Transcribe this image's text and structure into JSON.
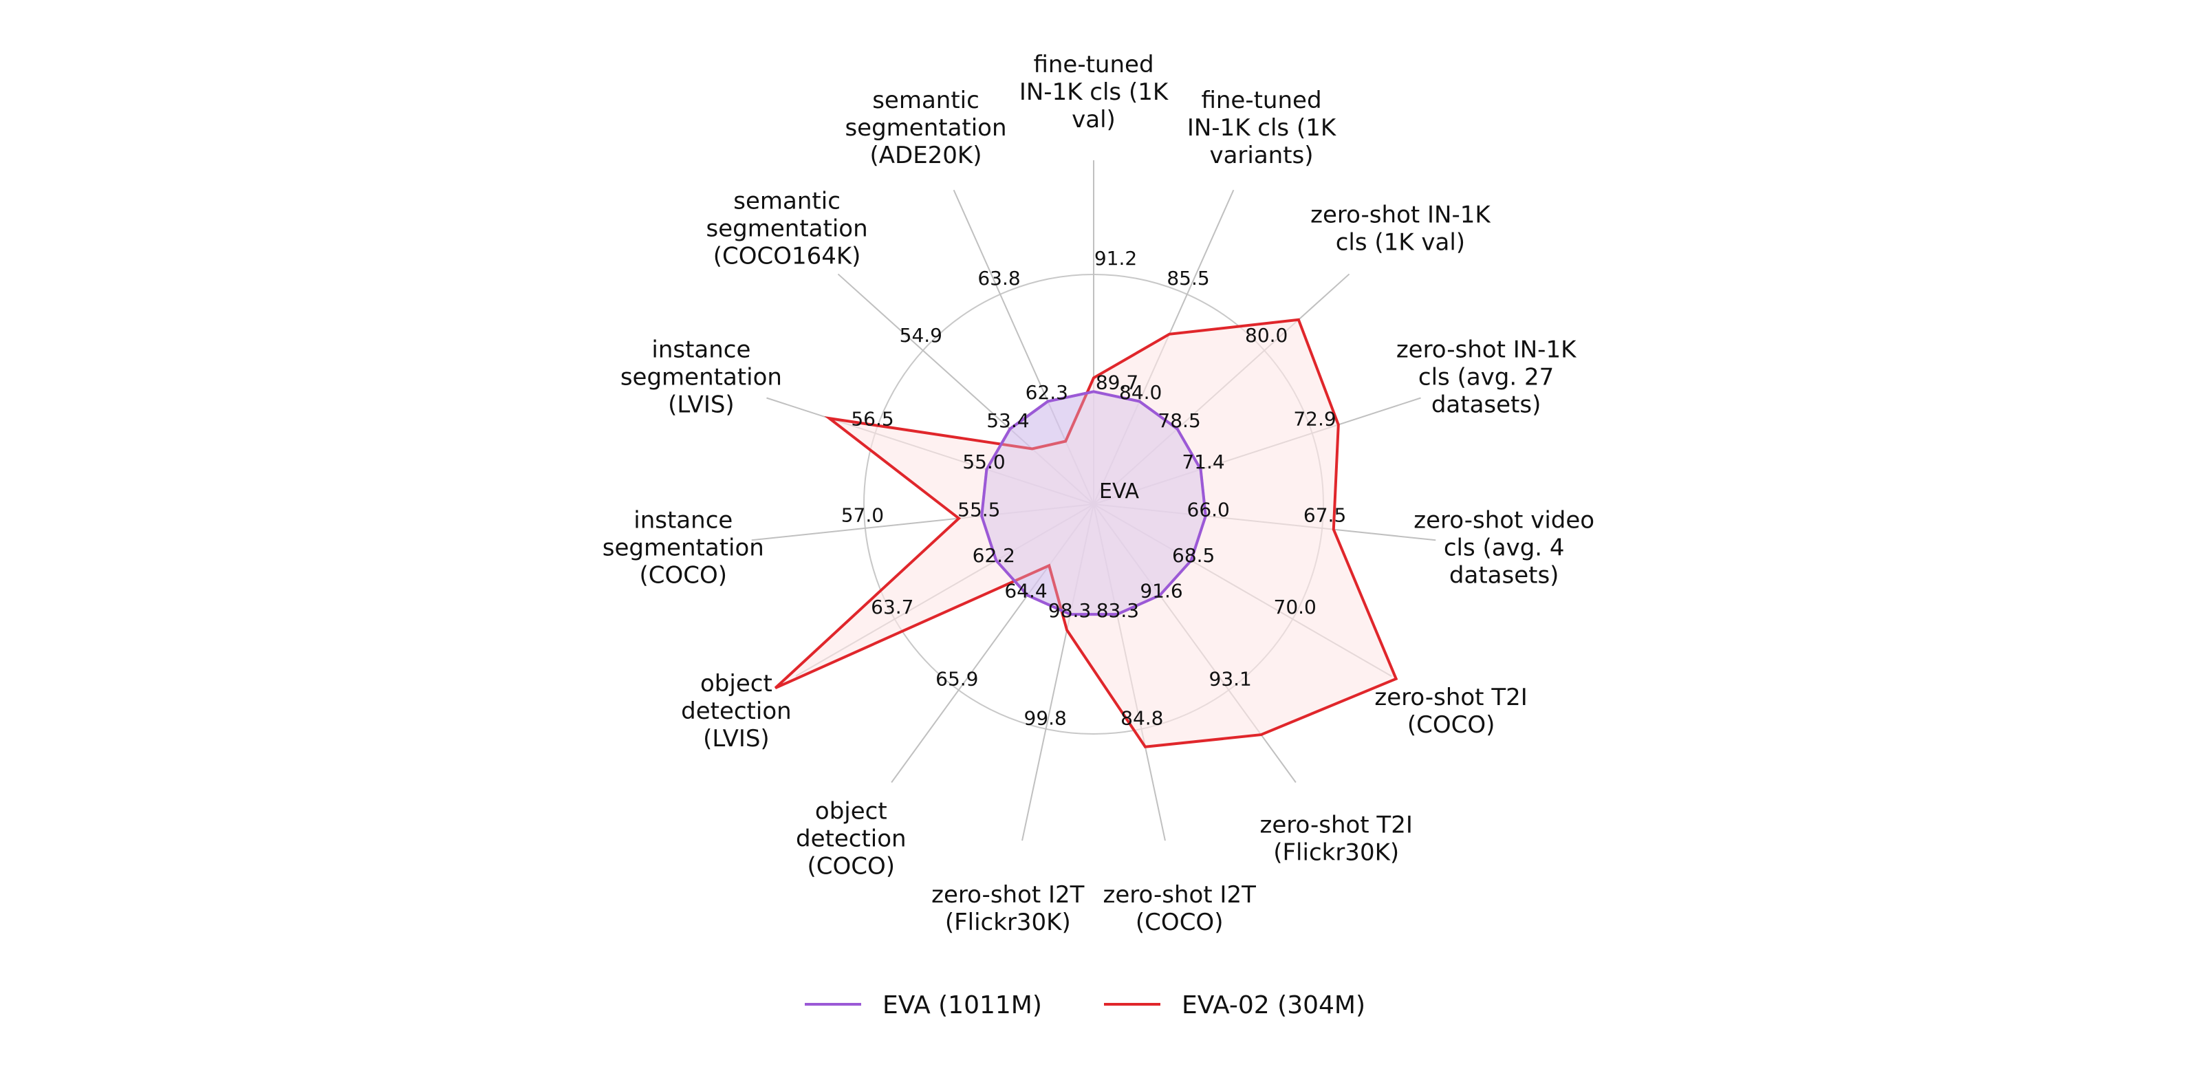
{
  "chart_data": {
    "type": "radar",
    "center_label": "EVA",
    "axes": [
      {
        "label": [
          "fine-tuned",
          "IN-1K cls (1K",
          "val)"
        ],
        "eva_value": "89.7",
        "eva02_value": "91.2"
      },
      {
        "label": [
          "fine-tuned",
          "IN-1K cls (1K",
          "variants)"
        ],
        "eva_value": "84.0",
        "eva02_value": "85.5"
      },
      {
        "label": [
          "zero-shot IN-1K",
          "cls (1K val)"
        ],
        "eva_value": "78.5",
        "eva02_value": "80.0"
      },
      {
        "label": [
          "zero-shot IN-1K",
          "cls (avg. 27",
          "datasets)"
        ],
        "eva_value": "71.4",
        "eva02_value": "72.9"
      },
      {
        "label": [
          "zero-shot video",
          "cls (avg. 4",
          "datasets)"
        ],
        "eva_value": "66.0",
        "eva02_value": "67.5"
      },
      {
        "label": [
          "zero-shot T2I",
          "(COCO)"
        ],
        "eva_value": "68.5",
        "eva02_value": "70.0"
      },
      {
        "label": [
          "zero-shot T2I",
          "(Flickr30K)"
        ],
        "eva_value": "91.6",
        "eva02_value": "93.1"
      },
      {
        "label": [
          "zero-shot I2T",
          "(COCO)"
        ],
        "eva_value": "83.3",
        "eva02_value": "84.8"
      },
      {
        "label": [
          "zero-shot I2T",
          "(Flickr30K)"
        ],
        "eva_value": "98.3",
        "eva02_value": "99.8"
      },
      {
        "label": [
          "object",
          "detection",
          "(COCO)"
        ],
        "eva_value": "64.4",
        "eva02_value": "65.9"
      },
      {
        "label": [
          "object",
          "detection",
          "(LVIS)"
        ],
        "eva_value": "62.2",
        "eva02_value": "63.7"
      },
      {
        "label": [
          "instance",
          "segmentation",
          "(COCO)"
        ],
        "eva_value": "55.5",
        "eva02_value": "57.0"
      },
      {
        "label": [
          "instance",
          "segmentation",
          "(LVIS)"
        ],
        "eva_value": "55.0",
        "eva02_value": "56.5"
      },
      {
        "label": [
          "semantic",
          "segmentation",
          "(COCO164K)"
        ],
        "eva_value": "53.4",
        "eva02_value": "54.9"
      },
      {
        "label": [
          "semantic",
          "segmentation",
          "(ADE20K)"
        ],
        "eva_value": "62.3",
        "eva02_value": "63.8"
      }
    ],
    "series": [
      {
        "name": "EVA (1011M)",
        "color": "#9b59d6",
        "fill": "#d8c6ee",
        "radius_fraction": [
          0.49,
          0.49,
          0.49,
          0.49,
          0.49,
          0.49,
          0.49,
          0.49,
          0.49,
          0.49,
          0.49,
          0.49,
          0.49,
          0.49,
          0.49
        ]
      },
      {
        "name": "EVA-02 (304M)",
        "color": "#e0262b",
        "fill": "#fde7e7",
        "radius_fraction": [
          0.55,
          0.81,
          1.2,
          1.12,
          1.05,
          1.52,
          1.24,
          1.08,
          0.56,
          0.33,
          1.6,
          0.59,
          1.21,
          0.36,
          0.3
        ]
      }
    ],
    "grid": true,
    "legend_position": "bottom"
  }
}
